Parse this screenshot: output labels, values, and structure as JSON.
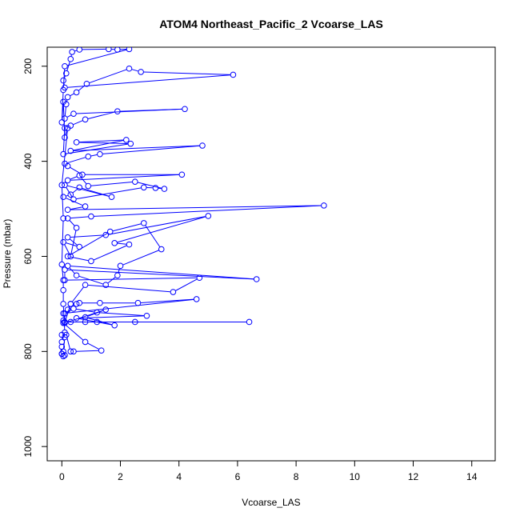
{
  "chart_data": {
    "type": "scatter",
    "title": "ATOM4 Northeast_Pacific_2 Vcoarse_LAS",
    "xlabel": "Vcoarse_LAS",
    "ylabel": "Pressure (mbar)",
    "xlim": [
      -0.5,
      14.8
    ],
    "ylim": [
      1030,
      160
    ],
    "y_reversed": true,
    "xticks": [
      0,
      2,
      4,
      6,
      8,
      10,
      12,
      14
    ],
    "yticks": [
      200,
      400,
      600,
      800,
      1000
    ],
    "grid": false,
    "legend": "none",
    "color": "#0000ff",
    "marker": "open-circle",
    "lines_connect_points": true,
    "series": [
      {
        "values": [
          [
            0.05,
            810
          ],
          [
            0.0,
            805
          ],
          [
            0.05,
            800
          ],
          [
            0.1,
            770
          ],
          [
            0.0,
            765
          ],
          [
            0.15,
            765
          ],
          [
            0.3,
            800
          ],
          [
            0.4,
            800
          ],
          [
            1.35,
            798
          ],
          [
            0.8,
            780
          ],
          [
            0.05,
            740
          ],
          [
            0.05,
            735
          ],
          [
            0.3,
            738
          ],
          [
            0.8,
            738
          ],
          [
            1.2,
            738
          ],
          [
            2.5,
            738
          ],
          [
            6.4,
            738
          ],
          [
            0.1,
            738
          ],
          [
            0.1,
            720
          ],
          [
            0.2,
            712
          ],
          [
            0.3,
            700
          ],
          [
            0.5,
            700
          ],
          [
            0.6,
            698
          ],
          [
            1.3,
            698
          ],
          [
            2.6,
            698
          ],
          [
            4.6,
            690
          ],
          [
            0.05,
            720
          ],
          [
            0.4,
            710
          ],
          [
            1.2,
            718
          ],
          [
            2.9,
            725
          ],
          [
            0.5,
            730
          ],
          [
            1.8,
            745
          ],
          [
            0.8,
            728
          ],
          [
            1.5,
            712
          ],
          [
            0.1,
            740
          ],
          [
            0.3,
            700
          ],
          [
            0.8,
            660
          ],
          [
            3.8,
            675
          ],
          [
            4.7,
            645
          ],
          [
            0.1,
            650
          ],
          [
            0.1,
            628
          ],
          [
            6.65,
            648
          ],
          [
            0.2,
            620
          ],
          [
            0.5,
            640
          ],
          [
            1.5,
            660
          ],
          [
            1.9,
            640
          ],
          [
            2.0,
            620
          ],
          [
            3.4,
            585
          ],
          [
            2.8,
            530
          ],
          [
            1.65,
            548
          ],
          [
            0.2,
            600
          ],
          [
            1.0,
            610
          ],
          [
            2.3,
            575
          ],
          [
            1.8,
            572
          ],
          [
            5.0,
            515
          ],
          [
            1.5,
            555
          ],
          [
            0.2,
            560
          ],
          [
            0.6,
            580
          ],
          [
            0.05,
            570
          ],
          [
            0.3,
            600
          ],
          [
            0.5,
            540
          ],
          [
            0.2,
            520
          ],
          [
            1.0,
            516
          ],
          [
            8.95,
            493
          ],
          [
            0.2,
            502
          ],
          [
            0.8,
            495
          ],
          [
            0.05,
            475
          ],
          [
            0.3,
            470
          ],
          [
            0.6,
            455
          ],
          [
            1.7,
            475
          ],
          [
            0.1,
            450
          ],
          [
            0.4,
            480
          ],
          [
            2.8,
            455
          ],
          [
            3.2,
            456
          ],
          [
            3.5,
            458
          ],
          [
            2.5,
            443
          ],
          [
            0.9,
            452
          ],
          [
            0.6,
            430
          ],
          [
            0.2,
            440
          ],
          [
            4.1,
            428
          ],
          [
            0.7,
            428
          ],
          [
            0.2,
            410
          ],
          [
            0.1,
            405
          ],
          [
            0.9,
            390
          ],
          [
            1.3,
            385
          ],
          [
            4.8,
            367
          ],
          [
            0.3,
            378
          ],
          [
            2.2,
            355
          ],
          [
            0.5,
            360
          ],
          [
            2.35,
            363
          ],
          [
            0.05,
            385
          ],
          [
            0.1,
            330
          ],
          [
            0.3,
            325
          ],
          [
            0.8,
            312
          ],
          [
            1.9,
            295
          ],
          [
            4.2,
            290
          ],
          [
            0.4,
            300
          ],
          [
            0.1,
            310
          ],
          [
            0.15,
            280
          ],
          [
            0.2,
            265
          ],
          [
            0.5,
            255
          ],
          [
            0.85,
            237
          ],
          [
            2.3,
            205
          ],
          [
            2.7,
            212
          ],
          [
            5.85,
            218
          ],
          [
            0.1,
            245
          ],
          [
            0.05,
            230
          ],
          [
            0.15,
            215
          ],
          [
            0.3,
            185
          ],
          [
            0.35,
            170
          ],
          [
            0.6,
            165
          ],
          [
            1.6,
            164
          ],
          [
            1.9,
            165
          ],
          [
            2.3,
            164
          ],
          [
            0.1,
            200
          ],
          [
            0.05,
            250
          ],
          [
            0.0,
            318
          ],
          [
            0.05,
            275
          ],
          [
            0.1,
            350
          ],
          [
            0.2,
            330
          ],
          [
            0.0,
            450
          ],
          [
            0.05,
            520
          ],
          [
            0.0,
            617
          ],
          [
            0.05,
            650
          ],
          [
            0.05,
            671
          ],
          [
            0.05,
            700
          ],
          [
            0.1,
            760
          ],
          [
            0.0,
            780
          ],
          [
            0.0,
            790
          ],
          [
            0.0,
            805
          ],
          [
            0.1,
            808
          ]
        ]
      }
    ]
  }
}
